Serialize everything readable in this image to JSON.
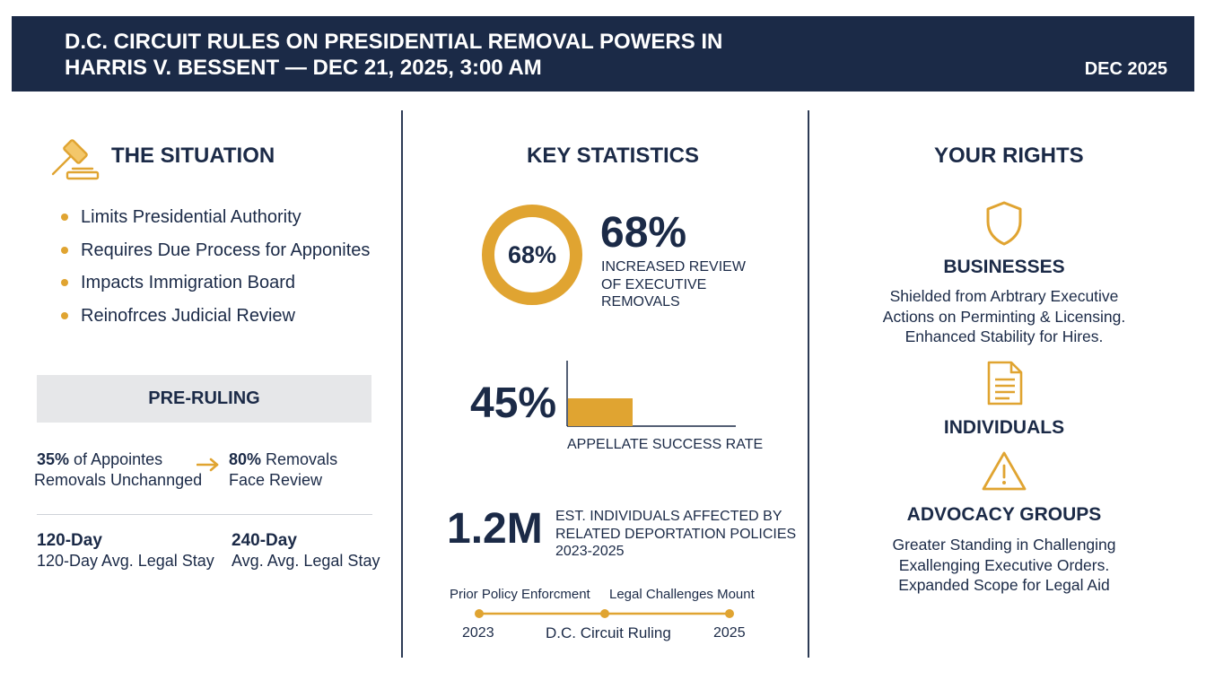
{
  "header": {
    "title_line1": "D.C. CIRCUIT RULES ON PRESIDENTIAL REMOVAL POWERS IN",
    "title_line2": "HARRIS V. BESSENT — DEC 21, 2025, 3:00 AM",
    "date": "DEC 2025"
  },
  "situation": {
    "title": "THE SITUATION",
    "icon": "gavel-icon",
    "bullets": [
      "Limits Presidential Authority",
      "Requires Due Process for Apponites",
      "Impacts Immigration Board",
      "Reinofrces Judicial Review"
    ],
    "pre_ruling_label": "PRE-RULING",
    "compare": {
      "left_value": "35%",
      "left_text1": "of Appointes",
      "left_text2": "Removals Unchannged",
      "right_value": "80%",
      "right_text1": "Removals",
      "right_text2": "Face Review"
    },
    "stays": {
      "left_value": "120-Day",
      "left_text": "120-Day Avg. Legal Stay",
      "right_value": "240-Day",
      "right_text": "Avg. Avg. Legal Stay"
    }
  },
  "statistics": {
    "title": "KEY STATISTICS",
    "donut": {
      "value": 68,
      "inner_label": "68%",
      "big_label": "68%",
      "caption": [
        "INCREASED REVIEW",
        "OF EXECUTIVE",
        "REMOVALS"
      ]
    },
    "bar": {
      "value": 45,
      "big_label": "45%",
      "caption": "APPELLATE SUCCESS RATE"
    },
    "affected": {
      "big_label": "1.2M",
      "caption": [
        "EST. INDIVIDUALS AFFECTED BY",
        "RELATED DEPORTATION POLICIES",
        "2023-2025"
      ]
    },
    "timeline": {
      "top_left": "Prior Policy Enforcment",
      "top_right": "Legal Challenges Mount",
      "start": "2023",
      "middle": "D.C. Circuit Ruling",
      "end": "2025"
    }
  },
  "rights": {
    "title": "YOUR RIGHTS",
    "groups": [
      {
        "icon": "shield-icon",
        "heading": "BUSINESSES",
        "lines": [
          "Shielded from Arbtrary Executive",
          "Actions on Perminting & Licensing.",
          "Enhanced Stability for Hires."
        ]
      },
      {
        "icon": "document-icon",
        "heading": "INDIVIDUALS",
        "lines": []
      },
      {
        "icon": "warning-icon",
        "heading": "ADVOCACY GROUPS",
        "lines": [
          "Greater Standing in Challenging",
          "Exallenging Executive Orders.",
          "Expanded Scope for Legal Aid"
        ]
      }
    ]
  },
  "colors": {
    "navy": "#1b2a47",
    "gold": "#e0a431",
    "gray_box": "#e6e7e9"
  }
}
